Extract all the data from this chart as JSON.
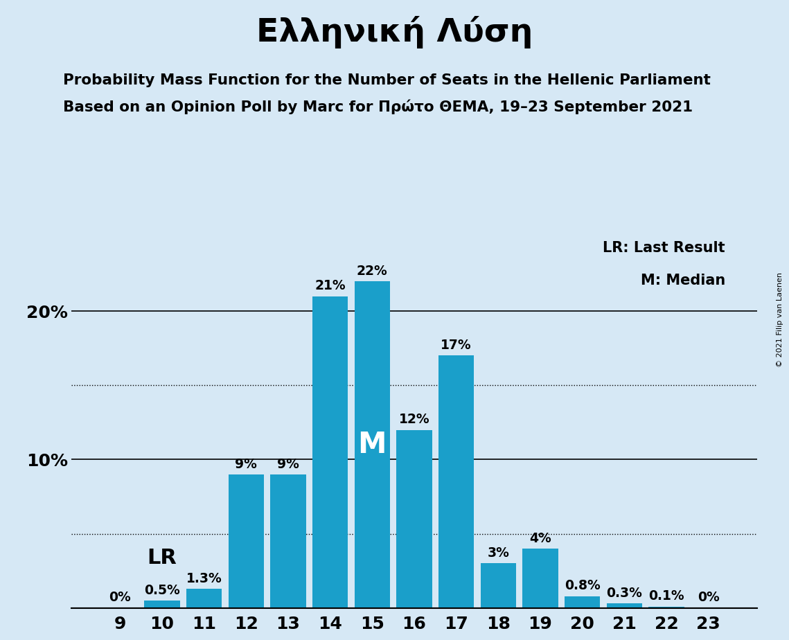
{
  "title": "Ελληνική Λύση",
  "subtitle1": "Probability Mass Function for the Number of Seats in the Hellenic Parliament",
  "subtitle2": "Based on an Opinion Poll by Marc for Πρώτο ΘΕΜΑ, 19–23 September 2021",
  "copyright": "© 2021 Filip van Laenen",
  "categories": [
    9,
    10,
    11,
    12,
    13,
    14,
    15,
    16,
    17,
    18,
    19,
    20,
    21,
    22,
    23
  ],
  "values": [
    0.0,
    0.5,
    1.3,
    9.0,
    9.0,
    21.0,
    22.0,
    12.0,
    17.0,
    3.0,
    4.0,
    0.8,
    0.3,
    0.1,
    0.0
  ],
  "bar_color": "#1a9fca",
  "background_color": "#d6e8f5",
  "bar_labels": [
    "0%",
    "0.5%",
    "1.3%",
    "9%",
    "9%",
    "21%",
    "22%",
    "12%",
    "17%",
    "3%",
    "4%",
    "0.8%",
    "0.3%",
    "0.1%",
    "0%"
  ],
  "lr_seat": 10,
  "median_seat": 15,
  "lr_label": "LR",
  "median_label": "M",
  "legend_lr": "LR: Last Result",
  "legend_m": "M: Median",
  "yticks": [
    0,
    10,
    20
  ],
  "ytick_labels": [
    "",
    "10%",
    "20%"
  ],
  "ylim": [
    0,
    25
  ],
  "dotted_lines": [
    5.0,
    15.0
  ],
  "title_fontsize": 34,
  "subtitle_fontsize": 15.5,
  "axis_label_fontsize": 18,
  "bar_label_fontsize": 13.5,
  "legend_fontsize": 15,
  "lr_label_fontsize": 22,
  "median_label_fontsize": 30
}
